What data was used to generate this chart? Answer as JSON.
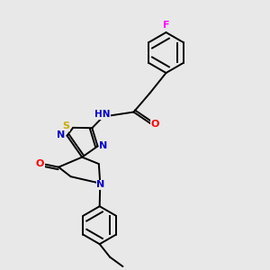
{
  "bg_color": "#e8e8e8",
  "bond_color": "#000000",
  "atom_colors": {
    "N": "#0000cc",
    "O": "#ff0000",
    "S": "#ccaa00",
    "F": "#ff00ff",
    "H": "#008888",
    "C": "#000000"
  },
  "figsize": [
    3.0,
    3.0
  ],
  "dpi": 100
}
